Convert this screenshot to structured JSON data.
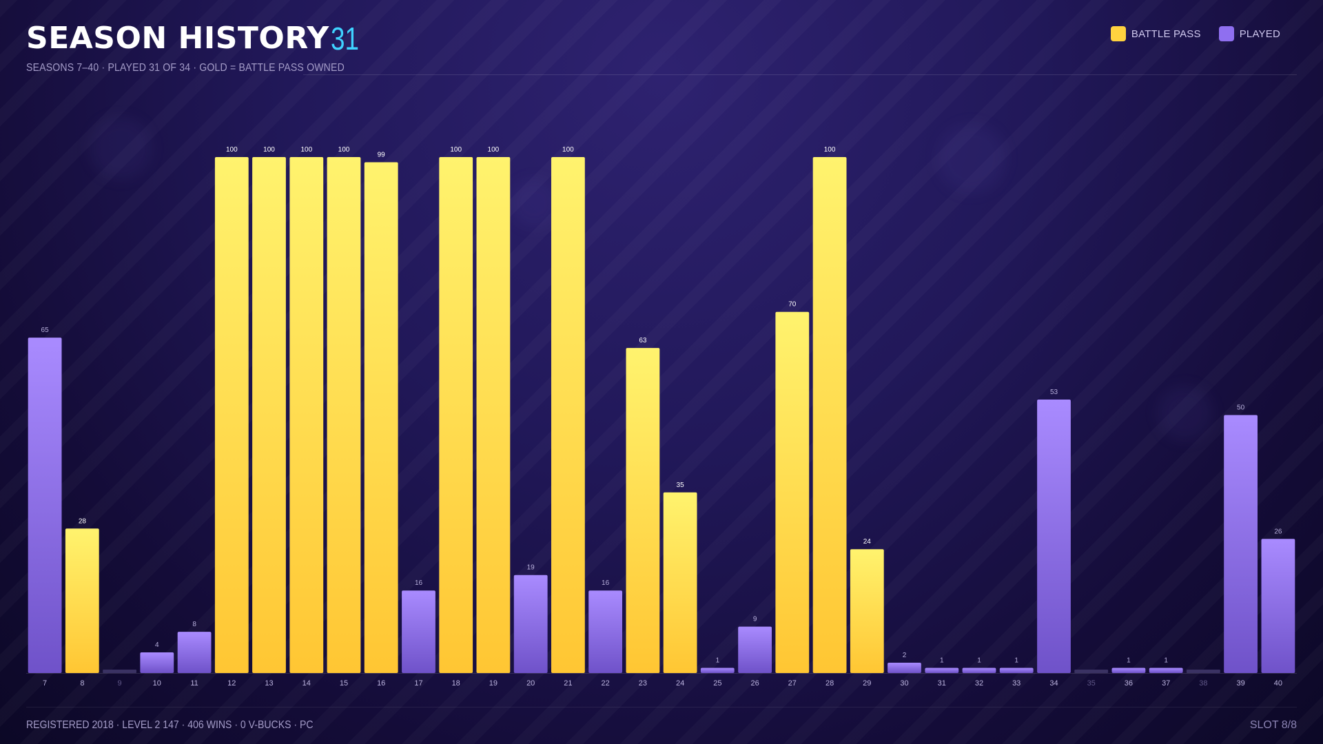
{
  "header": {
    "title": "SEASON HISTORY",
    "count": "31",
    "subtitle": "SEASONS 7–40 · PLAYED 31 OF 34 · GOLD = BATTLE PASS OWNED"
  },
  "legend": {
    "items": [
      {
        "label": "BATTLE PASS",
        "color": "#ffd23f"
      },
      {
        "label": "PLAYED",
        "color": "#8f6ff0"
      }
    ]
  },
  "footer": {
    "stats": "REGISTERED 2018 · LEVEL 2 147 · 406 WINS · 0 V-BUCKS · PC",
    "slot": "SLOT 8/8"
  },
  "colors": {
    "battle_pass_top": "#fff36e",
    "battle_pass_bottom": "#ffc633",
    "played_top": "#a98bff",
    "played_bottom": "#6f52c9",
    "empty": "#3a3263",
    "accent": "#3fd2ff"
  },
  "chart_data": {
    "type": "bar",
    "ylim": [
      0,
      100
    ],
    "grid": false,
    "legend_position": "top-right",
    "categories": [
      "7",
      "8",
      "9",
      "10",
      "11",
      "12",
      "13",
      "14",
      "15",
      "16",
      "17",
      "18",
      "19",
      "20",
      "21",
      "22",
      "23",
      "24",
      "25",
      "26",
      "27",
      "28",
      "29",
      "30",
      "31",
      "32",
      "33",
      "34",
      "35",
      "36",
      "37",
      "38",
      "39",
      "40"
    ],
    "values": [
      65,
      28,
      0,
      4,
      8,
      100,
      100,
      100,
      100,
      99,
      16,
      100,
      100,
      19,
      100,
      16,
      63,
      35,
      1,
      9,
      70,
      100,
      24,
      2,
      1,
      1,
      1,
      53,
      0,
      1,
      1,
      0,
      50,
      26
    ],
    "battle_pass": [
      false,
      true,
      false,
      false,
      false,
      true,
      true,
      true,
      true,
      true,
      false,
      true,
      true,
      false,
      true,
      false,
      true,
      true,
      false,
      false,
      true,
      true,
      true,
      false,
      false,
      false,
      false,
      false,
      false,
      false,
      false,
      false,
      false,
      false
    ],
    "played": [
      true,
      true,
      false,
      true,
      true,
      true,
      true,
      true,
      true,
      true,
      true,
      true,
      true,
      true,
      true,
      true,
      true,
      true,
      true,
      true,
      true,
      true,
      true,
      true,
      true,
      true,
      true,
      true,
      false,
      true,
      true,
      false,
      true,
      true
    ],
    "series": [
      {
        "name": "BATTLE PASS"
      },
      {
        "name": "PLAYED"
      }
    ]
  }
}
